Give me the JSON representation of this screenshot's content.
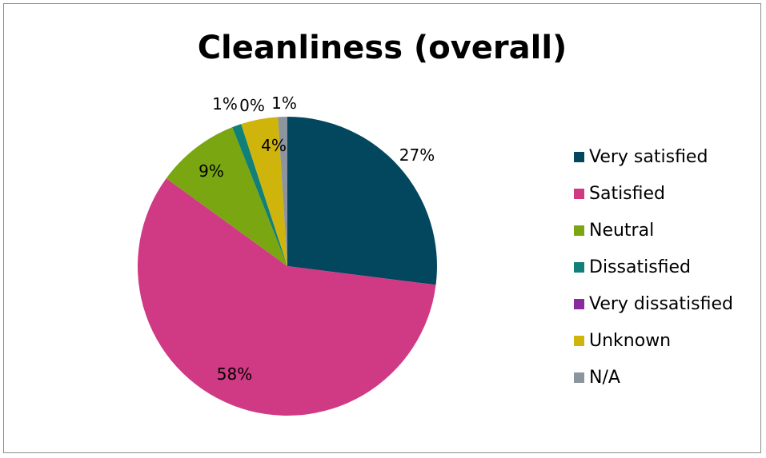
{
  "chart_data": {
    "type": "pie",
    "title": "Cleanliness (overall)",
    "categories": [
      "Very satisfied",
      "Satisfied",
      "Neutral",
      "Dissatisfied",
      "Very dissatisfied",
      "Unknown",
      "N/A"
    ],
    "values": [
      27,
      58,
      9,
      1,
      0,
      4,
      1
    ],
    "data_labels": [
      "27%",
      "58%",
      "9%",
      "1%",
      "0%",
      "4%",
      "1%"
    ],
    "colors": [
      "#03475f",
      "#d03a84",
      "#7aa611",
      "#118079",
      "#8a2a9f",
      "#cfb40c",
      "#8c959d"
    ],
    "legend_position": "right"
  }
}
